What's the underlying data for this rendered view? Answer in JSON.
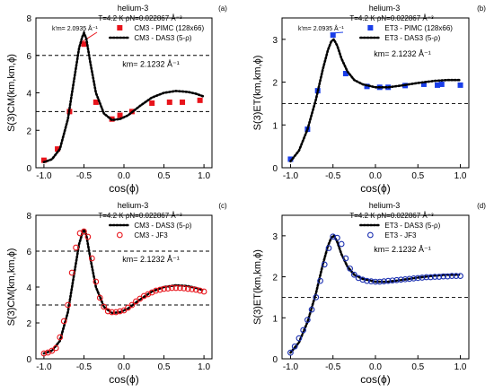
{
  "chart_data": [
    {
      "panel": "(a)",
      "type": "line",
      "title": "helium-3",
      "conditions": "T=4.2 K   ρN=0.022867 Å⁻³",
      "xlabel": "cos(ϕ)",
      "ylabel": "S(3)CM(km,km,ϕ)",
      "xlim": [
        -1.1,
        1.1
      ],
      "ylim": [
        0,
        8
      ],
      "xticks": [
        "-1.0",
        "-0.5",
        "0.0",
        "0.5",
        "1.0"
      ],
      "yticks": [
        "0",
        "2",
        "4",
        "6",
        "8"
      ],
      "legend_position": "top-right",
      "km_label": "km= 2.1232 Å⁻¹",
      "annotation": "k'm= 2.0935 Å⁻¹",
      "hlines": [
        6,
        3
      ],
      "series": [
        {
          "name": "CM3 - PIMC (128x66)",
          "style": "square",
          "color": "#e8141b",
          "x": [
            -1.0,
            -0.83,
            -0.68,
            -0.5,
            -0.35,
            -0.15,
            -0.05,
            0.1,
            0.35,
            0.57,
            0.73,
            0.95
          ],
          "y": [
            0.4,
            1.0,
            3.0,
            6.6,
            3.5,
            2.6,
            2.8,
            3.0,
            3.45,
            3.5,
            3.5,
            3.6
          ]
        },
        {
          "name": "CM3 - DAS3 (5-ρ)",
          "style": "dotted",
          "color": "#000000",
          "x": [
            -1.0,
            -0.9,
            -0.8,
            -0.7,
            -0.62,
            -0.56,
            -0.52,
            -0.5,
            -0.47,
            -0.42,
            -0.35,
            -0.25,
            -0.15,
            -0.05,
            0.05,
            0.2,
            0.35,
            0.5,
            0.65,
            0.8,
            0.9,
            1.0
          ],
          "y": [
            0.3,
            0.45,
            1.0,
            2.6,
            4.8,
            6.4,
            7.0,
            7.2,
            6.9,
            5.6,
            4.0,
            2.9,
            2.55,
            2.6,
            2.8,
            3.3,
            3.75,
            4.0,
            4.1,
            4.05,
            3.95,
            3.8
          ]
        }
      ]
    },
    {
      "panel": "(b)",
      "type": "line",
      "title": "helium-3",
      "conditions": "T=4.2 K   ρN=0.022867 Å⁻³",
      "xlabel": "cos(ϕ)",
      "ylabel": "S(3)ET(km,km,ϕ)",
      "xlim": [
        -1.1,
        1.1
      ],
      "ylim": [
        0,
        3.5
      ],
      "xticks": [
        "-1.0",
        "-0.5",
        "0.0",
        "0.5",
        "1.0"
      ],
      "yticks": [
        "0",
        "1",
        "2",
        "3"
      ],
      "legend_position": "top-right",
      "km_label": "km= 2.1232 Å⁻¹",
      "annotation": "k'm= 2.0935 Å⁻¹",
      "hlines": [
        1.5
      ],
      "series": [
        {
          "name": "ET3 - PIMC (128x66)",
          "style": "square",
          "color": "#1a3ee8",
          "x": [
            -1.0,
            -0.8,
            -0.68,
            -0.5,
            -0.35,
            -0.1,
            0.05,
            0.15,
            0.35,
            0.57,
            0.73,
            0.78,
            1.0
          ],
          "y": [
            0.2,
            0.9,
            1.8,
            3.1,
            2.2,
            1.9,
            1.88,
            1.88,
            1.92,
            1.95,
            1.93,
            1.95,
            1.93
          ]
        },
        {
          "name": "ET3 - DAS3 (5-ρ)",
          "style": "dotted",
          "color": "#000000",
          "x": [
            -1.0,
            -0.9,
            -0.8,
            -0.7,
            -0.62,
            -0.56,
            -0.52,
            -0.49,
            -0.45,
            -0.4,
            -0.33,
            -0.25,
            -0.15,
            0.0,
            0.15,
            0.3,
            0.5,
            0.7,
            0.85,
            1.0
          ],
          "y": [
            0.15,
            0.4,
            0.9,
            1.6,
            2.3,
            2.75,
            2.95,
            3.0,
            2.85,
            2.55,
            2.25,
            2.05,
            1.95,
            1.88,
            1.88,
            1.92,
            1.98,
            2.03,
            2.05,
            2.05
          ]
        }
      ]
    },
    {
      "panel": "(c)",
      "type": "line",
      "title": "helium-3",
      "conditions": "T=4.2 K   ρN=0.022867 Å⁻³",
      "xlabel": "cos(ϕ)",
      "ylabel": "S(3)CM(km,km,ϕ)",
      "xlim": [
        -1.1,
        1.1
      ],
      "ylim": [
        0,
        8
      ],
      "xticks": [
        "-1.0",
        "-0.5",
        "0.0",
        "0.5",
        "1.0"
      ],
      "yticks": [
        "0",
        "2",
        "4",
        "6",
        "8"
      ],
      "legend_position": "top-right",
      "km_label": "km= 2.1232 Å⁻¹",
      "annotation": "",
      "hlines": [
        6,
        3
      ],
      "series": [
        {
          "name": "CM3 - DAS3 (5-ρ)",
          "style": "dotted",
          "color": "#000000",
          "x": [
            -1.0,
            -0.9,
            -0.8,
            -0.7,
            -0.62,
            -0.56,
            -0.52,
            -0.5,
            -0.47,
            -0.42,
            -0.35,
            -0.25,
            -0.15,
            -0.05,
            0.05,
            0.2,
            0.35,
            0.5,
            0.65,
            0.8,
            0.9,
            1.0
          ],
          "y": [
            0.3,
            0.45,
            1.0,
            2.6,
            4.8,
            6.4,
            7.0,
            7.2,
            6.9,
            5.6,
            4.0,
            2.9,
            2.55,
            2.6,
            2.8,
            3.3,
            3.75,
            4.0,
            4.1,
            4.05,
            3.95,
            3.8
          ]
        },
        {
          "name": "CM3 - JF3",
          "style": "circle",
          "color": "#e8141b",
          "x": [
            -1.0,
            -0.95,
            -0.9,
            -0.85,
            -0.8,
            -0.75,
            -0.7,
            -0.65,
            -0.6,
            -0.55,
            -0.5,
            -0.45,
            -0.4,
            -0.35,
            -0.3,
            -0.25,
            -0.2,
            -0.15,
            -0.1,
            -0.05,
            0.0,
            0.05,
            0.1,
            0.15,
            0.2,
            0.25,
            0.3,
            0.35,
            0.4,
            0.45,
            0.5,
            0.55,
            0.6,
            0.65,
            0.7,
            0.75,
            0.8,
            0.85,
            0.9,
            0.95,
            1.0
          ],
          "y": [
            0.3,
            0.35,
            0.45,
            0.6,
            1.2,
            2.1,
            3.0,
            4.8,
            6.2,
            7.0,
            7.1,
            6.8,
            5.6,
            4.3,
            3.4,
            2.9,
            2.65,
            2.6,
            2.6,
            2.65,
            2.7,
            2.85,
            3.0,
            3.2,
            3.35,
            3.5,
            3.6,
            3.7,
            3.8,
            3.85,
            3.9,
            3.92,
            3.95,
            3.95,
            3.95,
            3.93,
            3.9,
            3.88,
            3.85,
            3.8,
            3.75
          ]
        }
      ]
    },
    {
      "panel": "(d)",
      "type": "line",
      "title": "helium-3",
      "conditions": "T=4.2 K   ρN=0.022867 Å⁻³",
      "xlabel": "cos(ϕ)",
      "ylabel": "S(3)ET(km,km,ϕ)",
      "xlim": [
        -1.1,
        1.1
      ],
      "ylim": [
        0,
        3.5
      ],
      "xticks": [
        "-1.0",
        "-0.5",
        "0.0",
        "0.5",
        "1.0"
      ],
      "yticks": [
        "0",
        "1",
        "2",
        "3"
      ],
      "legend_position": "top-right",
      "km_label": "km= 2.1232 Å⁻¹",
      "annotation": "",
      "hlines": [
        1.5
      ],
      "series": [
        {
          "name": "ET3 - DAS3 (5-ρ)",
          "style": "dotted",
          "color": "#000000",
          "x": [
            -1.0,
            -0.9,
            -0.8,
            -0.7,
            -0.62,
            -0.56,
            -0.52,
            -0.49,
            -0.45,
            -0.4,
            -0.33,
            -0.25,
            -0.15,
            0.0,
            0.15,
            0.3,
            0.5,
            0.7,
            0.85,
            1.0
          ],
          "y": [
            0.15,
            0.4,
            0.9,
            1.6,
            2.3,
            2.75,
            2.95,
            3.0,
            2.85,
            2.55,
            2.25,
            2.05,
            1.95,
            1.88,
            1.88,
            1.92,
            1.98,
            2.03,
            2.05,
            2.05
          ]
        },
        {
          "name": "ET3 - JF3",
          "style": "circle",
          "color": "#1a2fb0",
          "x": [
            -1.0,
            -0.95,
            -0.9,
            -0.85,
            -0.8,
            -0.75,
            -0.7,
            -0.65,
            -0.6,
            -0.55,
            -0.5,
            -0.45,
            -0.4,
            -0.35,
            -0.3,
            -0.25,
            -0.2,
            -0.15,
            -0.1,
            -0.05,
            0.0,
            0.05,
            0.1,
            0.15,
            0.2,
            0.25,
            0.3,
            0.35,
            0.4,
            0.45,
            0.5,
            0.55,
            0.6,
            0.65,
            0.7,
            0.75,
            0.8,
            0.85,
            0.9,
            0.95,
            1.0
          ],
          "y": [
            0.15,
            0.3,
            0.5,
            0.7,
            0.95,
            1.2,
            1.5,
            1.9,
            2.3,
            2.7,
            2.98,
            2.95,
            2.8,
            2.45,
            2.2,
            2.05,
            1.97,
            1.93,
            1.9,
            1.89,
            1.88,
            1.88,
            1.89,
            1.9,
            1.91,
            1.92,
            1.93,
            1.94,
            1.95,
            1.96,
            1.97,
            1.98,
            1.99,
            1.99,
            2.0,
            2.0,
            2.01,
            2.01,
            2.02,
            2.02,
            2.02
          ]
        }
      ]
    }
  ]
}
